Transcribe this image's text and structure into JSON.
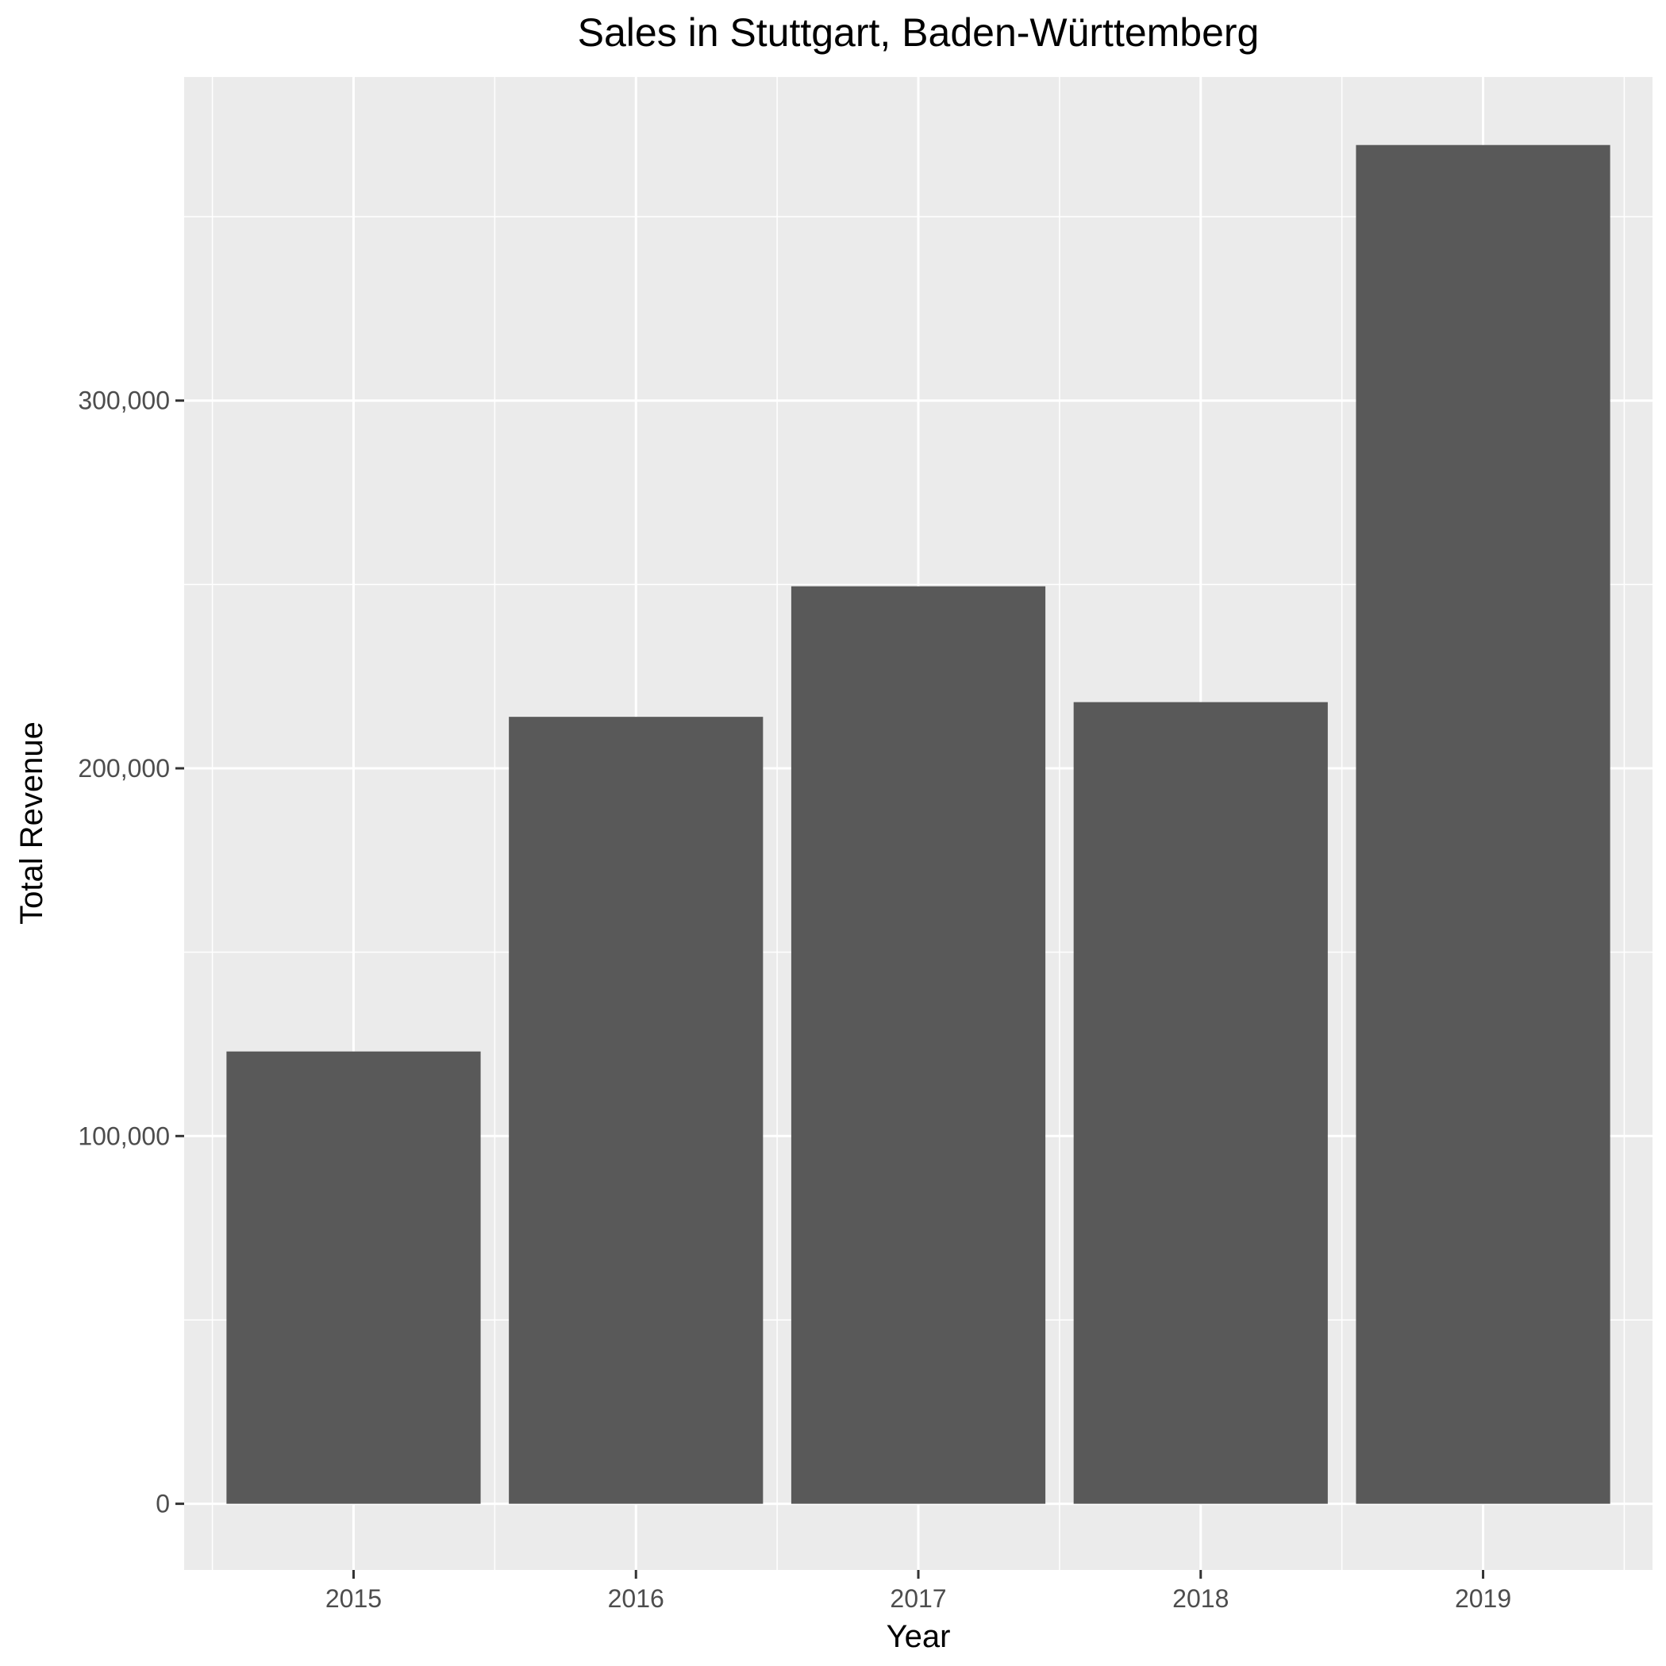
{
  "chart_data": {
    "type": "bar",
    "title": "Sales in Stuttgart, Baden-Württemberg",
    "xlabel": "Year",
    "ylabel": "Total Revenue",
    "categories": [
      "2015",
      "2016",
      "2017",
      "2018",
      "2019"
    ],
    "values": [
      123000,
      214000,
      249500,
      218000,
      369500
    ],
    "ylim": [
      -18000,
      388000
    ],
    "yticks": [
      0,
      100000,
      200000,
      300000
    ],
    "ytick_labels": [
      "0",
      "100,000",
      "200,000",
      "300,000"
    ],
    "grid": true,
    "legend": "none"
  },
  "colors": {
    "bar": "#595959",
    "panel": "#ebebeb",
    "grid": "#ffffff",
    "tick": "#333333"
  }
}
